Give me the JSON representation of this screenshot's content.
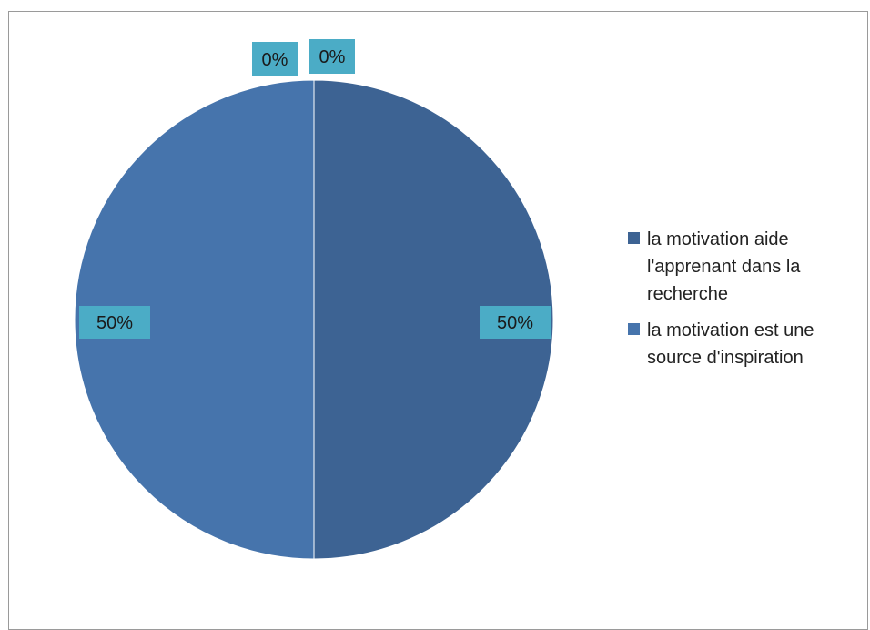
{
  "chart_data": {
    "type": "pie",
    "title": "",
    "categories": [
      "la motivation aide l'apprenant dans la recherche",
      "la motivation est une source d'inspiration"
    ],
    "values": [
      50,
      50
    ],
    "data_labels": [
      "50%",
      "50%"
    ],
    "extra_zero_labels": [
      "0%",
      "0%"
    ],
    "colors": [
      "#3d6393",
      "#4674ac"
    ],
    "label_box_color": "#4bacc6",
    "legend_position": "right",
    "start_angle": "12 o'clock",
    "direction": "clockwise"
  },
  "legend": {
    "items": [
      {
        "label_line1": "la motivation aide",
        "label_line2": "l'apprenant dans la",
        "label_line3": "recherche",
        "color": "#3d6393"
      },
      {
        "label_line1": "la motivation est une",
        "label_line2": "source d'inspiration",
        "color": "#4674ac"
      }
    ]
  }
}
